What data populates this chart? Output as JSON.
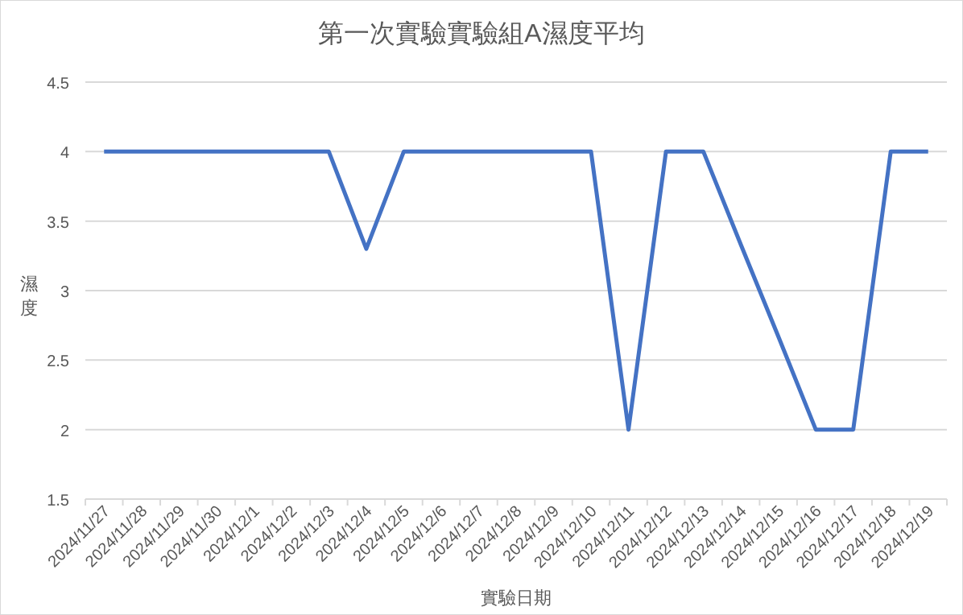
{
  "chart_data": {
    "type": "line",
    "title": "第一次實驗實驗組A濕度平均",
    "xlabel": "實驗日期",
    "ylabel": "濕度",
    "categories": [
      "2024/11/27",
      "2024/11/28",
      "2024/11/29",
      "2024/11/30",
      "2024/12/1",
      "2024/12/2",
      "2024/12/3",
      "2024/12/4",
      "2024/12/5",
      "2024/12/6",
      "2024/12/7",
      "2024/12/8",
      "2024/12/9",
      "2024/12/10",
      "2024/12/11",
      "2024/12/12",
      "2024/12/13",
      "2024/12/14",
      "2024/12/15",
      "2024/12/16",
      "2024/12/17",
      "2024/12/18",
      "2024/12/19"
    ],
    "series": [
      {
        "color": "#4472c4",
        "values": [
          4,
          4,
          4,
          4,
          4,
          4,
          4,
          3.3,
          4,
          4,
          4,
          4,
          4,
          4,
          2,
          4,
          4,
          3.33,
          2.67,
          2,
          2,
          4,
          4
        ]
      }
    ],
    "ylim": [
      1.5,
      4.5
    ],
    "yticks": [
      1.5,
      2,
      2.5,
      3,
      3.5,
      4,
      4.5
    ],
    "grid": "y",
    "marker": "none",
    "line_style": "solid"
  }
}
